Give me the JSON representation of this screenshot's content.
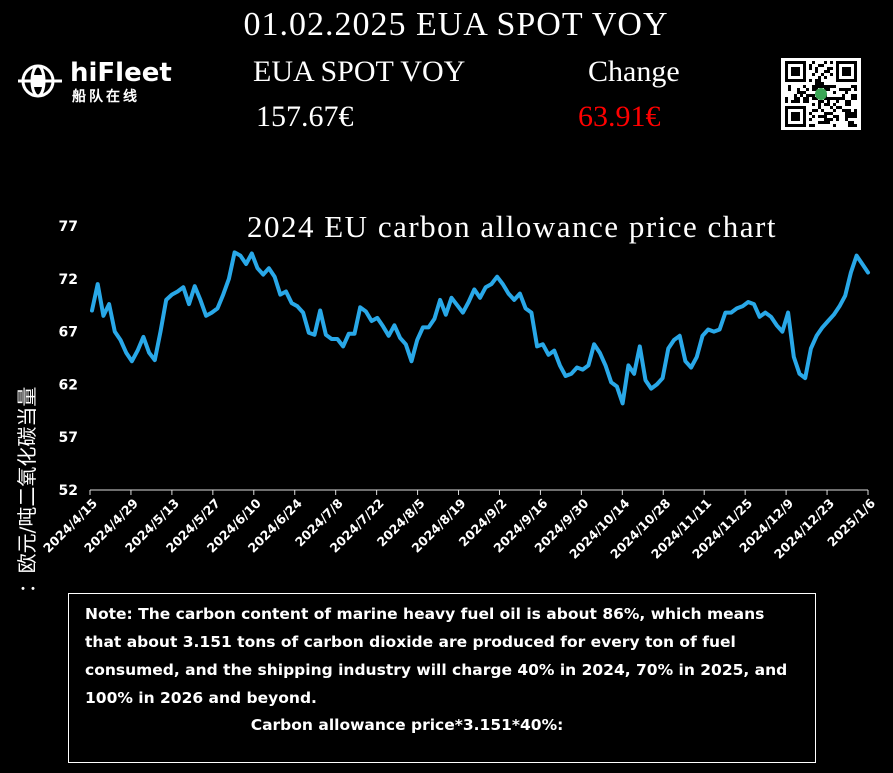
{
  "header": {
    "title": "01.02.2025 EUA SPOT VOY",
    "spot_label": "EUA SPOT VOY",
    "spot_value": "157.67€",
    "change_label": "Change",
    "change_value": "63.91€"
  },
  "logo": {
    "name": "hiFleet",
    "subtitle": "船队在线"
  },
  "colors": {
    "line": "#29a8e8",
    "change": "#ff0000",
    "background": "#000000",
    "text": "#ffffff"
  },
  "chart_data": {
    "type": "line",
    "title": "2024 EU carbon allowance price chart",
    "ylabel": "单位：欧元/吨二氧化碳当量",
    "xlabel": "",
    "ylim": [
      52,
      77
    ],
    "yticks": [
      77,
      72,
      67,
      62,
      57,
      52
    ],
    "xticks": [
      "2024/4/15",
      "2024/4/29",
      "2024/5/13",
      "2024/5/27",
      "2024/6/10",
      "2024/6/24",
      "2024/7/8",
      "2024/7/22",
      "2024/8/5",
      "2024/8/19",
      "2024/9/2",
      "2024/9/16",
      "2024/9/30",
      "2024/10/14",
      "2024/10/28",
      "2024/11/11",
      "2024/11/25",
      "2024/12/9",
      "2024/12/23",
      "2025/1/6"
    ],
    "grid": false,
    "series": [
      {
        "values": [
          69.0,
          71.5,
          68.5,
          69.6,
          67.0,
          66.2,
          65.0,
          64.2,
          65.2,
          66.5,
          65.0,
          64.3,
          67.0,
          70.0,
          70.5,
          70.8,
          71.2,
          69.6,
          71.3,
          70.0,
          68.5,
          68.8,
          69.2,
          70.5,
          72.0,
          74.5,
          74.2,
          73.4,
          74.4,
          73.0,
          72.4,
          73.0,
          72.2,
          70.5,
          70.8,
          69.7,
          69.4,
          68.8,
          66.9,
          66.7,
          69.0,
          66.7,
          66.3,
          66.3,
          65.6,
          66.8,
          66.8,
          69.3,
          68.9,
          68.0,
          68.3,
          67.5,
          66.6,
          67.6,
          66.4,
          65.8,
          64.2,
          66.2,
          67.4,
          67.4,
          68.2,
          70.0,
          68.6,
          70.2,
          69.5,
          68.8,
          69.8,
          71.0,
          70.2,
          71.2,
          71.5,
          72.2,
          71.5,
          70.6,
          70.0,
          70.6,
          69.2,
          68.8,
          65.6,
          65.8,
          64.8,
          65.2,
          63.8,
          62.8,
          63.0,
          63.6,
          63.4,
          63.8,
          65.8,
          65.0,
          63.8,
          62.2,
          61.8,
          60.2,
          63.8,
          63.0,
          65.6,
          62.4,
          61.6,
          62.0,
          62.6,
          65.4,
          66.2,
          66.6,
          64.2,
          63.6,
          64.6,
          66.6,
          67.2,
          67.0,
          67.2,
          68.8,
          68.8,
          69.2,
          69.4,
          69.8,
          69.6,
          68.4,
          68.8,
          68.4,
          67.6,
          67.0,
          68.8,
          64.6,
          63.0,
          62.6,
          65.4,
          66.6,
          67.4,
          68.0,
          68.6,
          69.4,
          70.4,
          72.6,
          74.2,
          73.4,
          72.6
        ]
      }
    ]
  },
  "note": {
    "text": "Note: The carbon content of marine heavy fuel oil is about 86%, which means that about 3.151 tons of carbon dioxide are produced for every ton of fuel consumed, and the shipping industry will charge 40% in 2024, 70% in 2025, and 100% in 2026 and beyond.",
    "formula": "Carbon allowance price*3.151*40%:"
  }
}
